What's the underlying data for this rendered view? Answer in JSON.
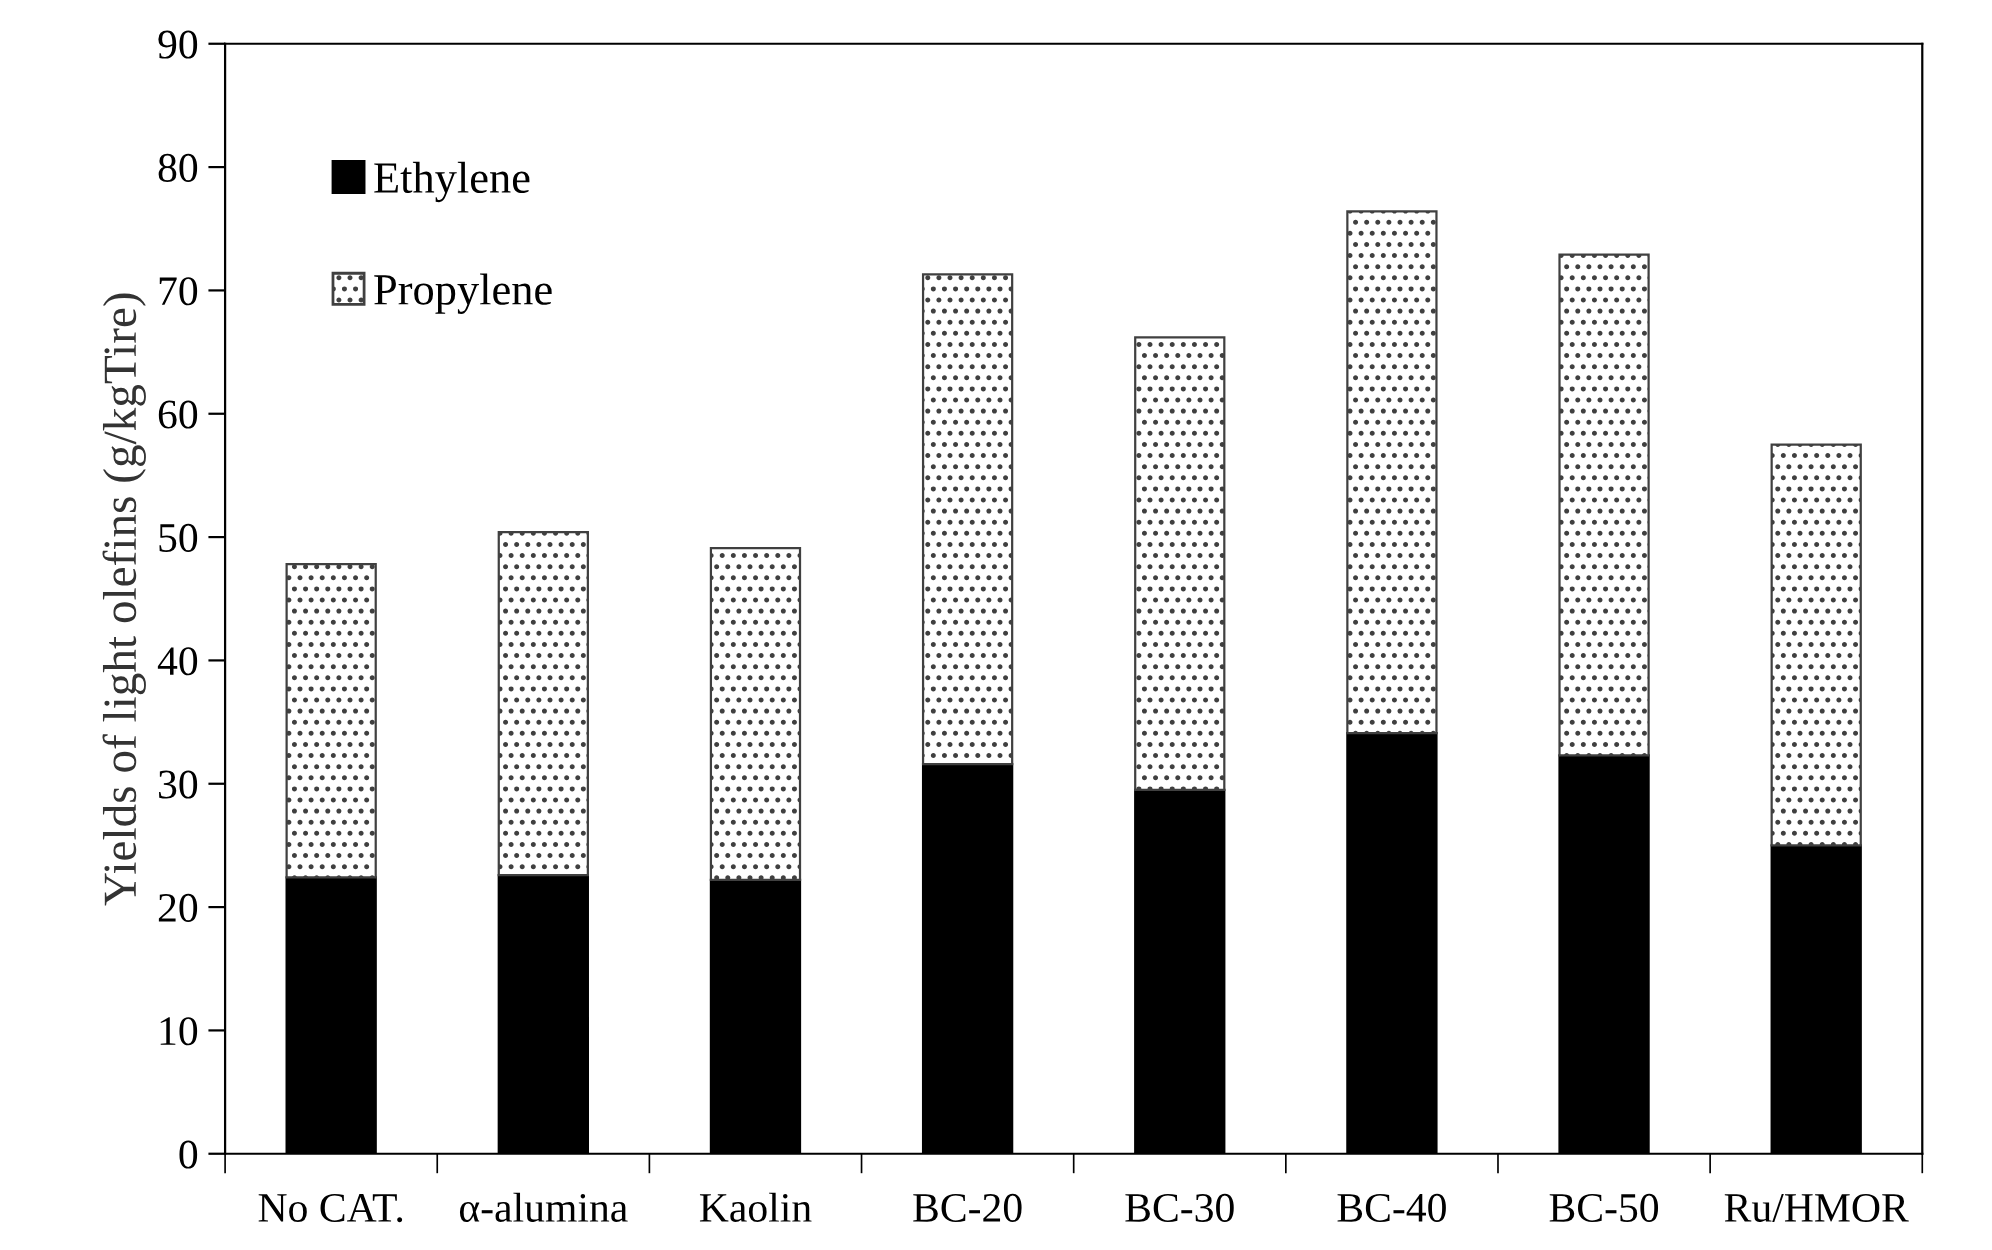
{
  "chart_data": {
    "type": "bar",
    "stacked": true,
    "ylabel": "Yields of light olefins (g/kgTire)",
    "categories": [
      "No CAT.",
      "α-alumina",
      "Kaolin",
      "BC-20",
      "BC-30",
      "BC-40",
      "BC-50",
      "Ru/HMOR"
    ],
    "series": [
      {
        "name": "Ethylene",
        "color": "#000000",
        "values": [
          22.4,
          22.6,
          22.2,
          31.6,
          29.5,
          34.1,
          32.3,
          25.0
        ]
      },
      {
        "name": "Propylene",
        "color": "#404040",
        "values": [
          25.4,
          27.8,
          26.9,
          39.7,
          36.7,
          42.3,
          40.6,
          32.5
        ]
      }
    ],
    "ylim": [
      0,
      90
    ],
    "yticks": [
      0,
      10,
      20,
      30,
      40,
      50,
      60,
      70,
      80,
      90
    ],
    "grid": false,
    "legend": "top left"
  }
}
